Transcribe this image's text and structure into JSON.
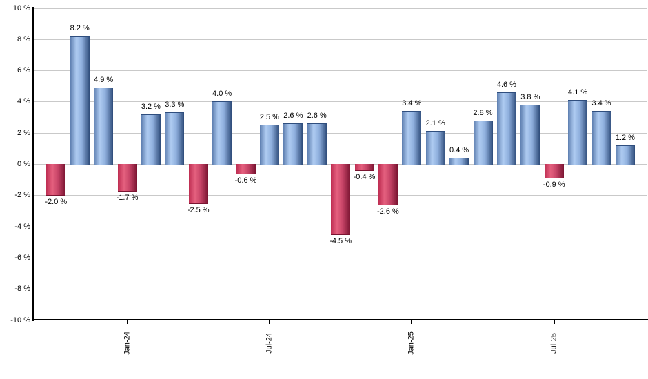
{
  "chart_data": {
    "type": "bar",
    "title": "",
    "xlabel": "",
    "ylabel": "",
    "unit": "%",
    "ylim": [
      -10,
      10
    ],
    "grid": true,
    "legend": "none",
    "y_ticks": [
      {
        "value": 10,
        "label": "10 %"
      },
      {
        "value": 8,
        "label": "8 %"
      },
      {
        "value": 6,
        "label": "6 %"
      },
      {
        "value": 4,
        "label": "4 %"
      },
      {
        "value": 2,
        "label": "2 %"
      },
      {
        "value": 0,
        "label": "0 %"
      },
      {
        "value": -2,
        "label": "-2 %"
      },
      {
        "value": -4,
        "label": "-4 %"
      },
      {
        "value": -6,
        "label": "-6 %"
      },
      {
        "value": -8,
        "label": "-8 %"
      },
      {
        "value": -10,
        "label": "-10 %"
      }
    ],
    "x_ticks": [
      {
        "label": "Jan-24",
        "bar_index": 3
      },
      {
        "label": "Jul-24",
        "bar_index": 9
      },
      {
        "label": "Jan-25",
        "bar_index": 15
      },
      {
        "label": "Jul-25",
        "bar_index": 21
      }
    ],
    "bars": [
      {
        "value": -2.0,
        "label": "-2.0 %"
      },
      {
        "value": 8.2,
        "label": "8.2 %"
      },
      {
        "value": 4.9,
        "label": "4.9 %"
      },
      {
        "value": -1.7,
        "label": "-1.7 %"
      },
      {
        "value": 3.2,
        "label": "3.2 %"
      },
      {
        "value": 3.3,
        "label": "3.3 %"
      },
      {
        "value": -2.5,
        "label": "-2.5 %"
      },
      {
        "value": 4.0,
        "label": "4.0 %"
      },
      {
        "value": -0.6,
        "label": "-0.6 %"
      },
      {
        "value": 2.5,
        "label": "2.5 %"
      },
      {
        "value": 2.6,
        "label": "2.6 %"
      },
      {
        "value": 2.6,
        "label": "2.6 %"
      },
      {
        "value": -4.5,
        "label": "-4.5 %"
      },
      {
        "value": -0.4,
        "label": "-0.4 %"
      },
      {
        "value": -2.6,
        "label": "-2.6 %"
      },
      {
        "value": 3.4,
        "label": "3.4 %"
      },
      {
        "value": 2.1,
        "label": "2.1 %"
      },
      {
        "value": 0.4,
        "label": "0.4 %"
      },
      {
        "value": 2.8,
        "label": "2.8 %"
      },
      {
        "value": 4.6,
        "label": "4.6 %"
      },
      {
        "value": 3.8,
        "label": "3.8 %"
      },
      {
        "value": -0.9,
        "label": "-0.9 %"
      },
      {
        "value": 4.1,
        "label": "4.1 %"
      },
      {
        "value": 3.4,
        "label": "3.4 %"
      },
      {
        "value": 1.2,
        "label": "1.2 %"
      }
    ],
    "colors": {
      "positive_edge_left": "#5e7fb0",
      "positive_highlight": "#afccf2",
      "positive_mid": "#8fafdd",
      "positive_edge_right": "#2e4c7a",
      "negative_edge_left": "#be2d52",
      "negative_highlight": "#e5617f",
      "negative_mid": "#c74467",
      "negative_edge_right": "#7a1431",
      "gridline": "#c9c9c9",
      "axis": "#000000",
      "background": "#ffffff",
      "label_text": "#000000"
    }
  }
}
